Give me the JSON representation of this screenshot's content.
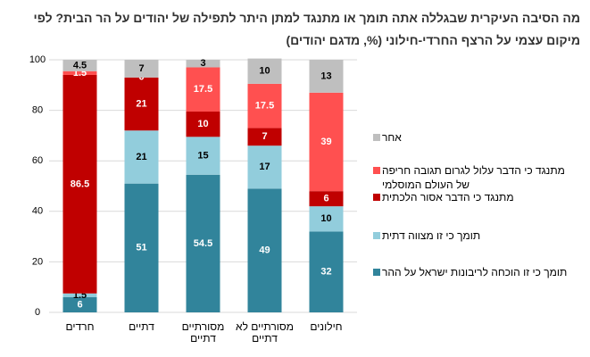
{
  "chart_data": {
    "type": "stacked_bar",
    "title": "מה הסיבה העיקרית שבגללה אתה תומך או מתנגד למתן היתר לתפילה של יהודים על הר הבית? לפי מיקום עצמי על הרצף החרדי-חילוני (%, מדגם יהודים)",
    "categories": [
      "חרדים",
      "דתיים",
      "מסורתיים דתיים",
      "מסורתיים לא דתיים",
      "חילונים"
    ],
    "series": [
      {
        "name": "תומך כי זו הוכחה לריבונות ישראל על ההר",
        "color": "#31849b",
        "values": [
          6,
          51,
          54.5,
          49,
          32
        ]
      },
      {
        "name": "תומך כי זו מצווה דתית",
        "color": "#92cddc",
        "values": [
          1.5,
          21,
          15,
          17,
          10
        ]
      },
      {
        "name": "מתנגד כי הדבר אסור הלכתית",
        "color": "#c00000",
        "values": [
          86.5,
          21,
          10,
          7,
          6
        ]
      },
      {
        "name": "מתנגד כי הדבר עלול לגרום תגובה חריפה של העולם המוסלמי",
        "color": "#ff5050",
        "values": [
          1.5,
          0,
          17.5,
          17.5,
          39
        ]
      },
      {
        "name": "אחר",
        "color": "#bfbfbf",
        "values": [
          4.5,
          7,
          3,
          10,
          13
        ]
      }
    ],
    "ylim": [
      0,
      100
    ],
    "yticks": [
      0,
      20,
      40,
      60,
      80,
      100
    ],
    "grid": true,
    "legend": "right"
  }
}
